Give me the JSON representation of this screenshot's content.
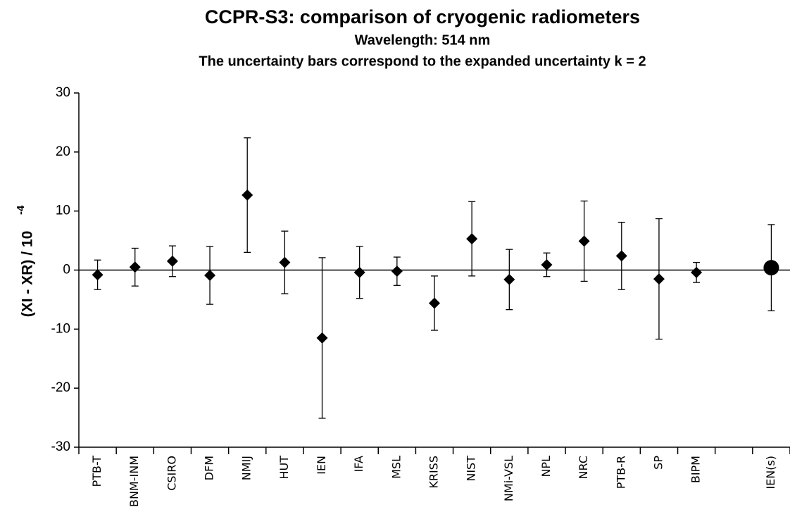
{
  "chart_data": {
    "type": "errorbar",
    "title": "CCPR-S3: comparison of cryogenic radiometers",
    "subtitle": "Wavelength: 514 nm",
    "note": "The uncertainty bars correspond to the expanded uncertainty k = 2",
    "ylabel": "(XI - XR) / 10",
    "ylabel_exponent": "-4",
    "categories": [
      "PTB-T",
      "BNM-INM",
      "CSIRO",
      "DFM",
      "NMIJ",
      "HUT",
      "IEN",
      "IFA",
      "MSL",
      "KRISS",
      "NIST",
      "NMi-VSL",
      "NPL",
      "NRC",
      "PTB-R",
      "SP",
      "BIPM",
      null,
      "IEN(s)"
    ],
    "values": [
      -0.8,
      0.5,
      1.5,
      -0.9,
      12.7,
      1.3,
      -11.5,
      -0.4,
      -0.2,
      -5.6,
      5.3,
      -1.6,
      0.9,
      4.9,
      2.4,
      -1.5,
      -0.4,
      null,
      0.4
    ],
    "errors": [
      2.5,
      3.2,
      2.6,
      4.9,
      9.7,
      5.3,
      13.6,
      4.4,
      2.4,
      4.6,
      6.3,
      5.1,
      2.0,
      6.8,
      5.7,
      10.2,
      1.7,
      null,
      7.3
    ],
    "markers": [
      "diamond",
      "diamond",
      "diamond",
      "diamond",
      "diamond",
      "diamond",
      "diamond",
      "diamond",
      "diamond",
      "diamond",
      "diamond",
      "diamond",
      "diamond",
      "diamond",
      "diamond",
      "diamond",
      "diamond",
      null,
      "circle"
    ],
    "color": "#000000",
    "ylim": [
      -30,
      30
    ],
    "yticks": [
      -30,
      -20,
      -10,
      0,
      10,
      20,
      30
    ]
  }
}
